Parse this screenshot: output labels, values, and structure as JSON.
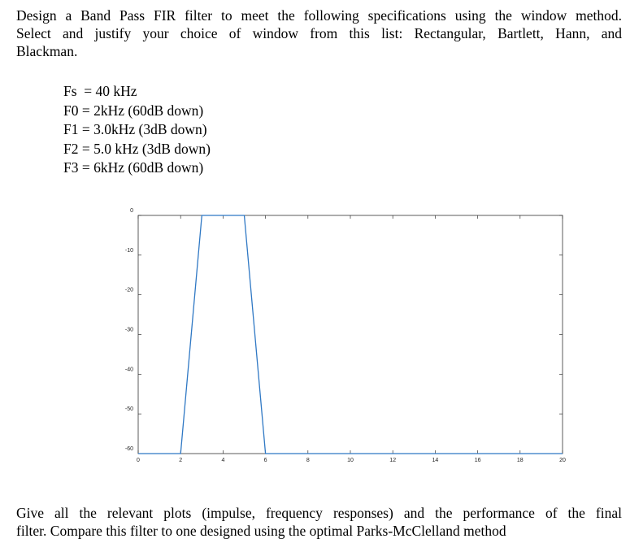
{
  "intro_lines": [
    "Design a Band Pass FIR filter to meet the following specifications using the window method.",
    "Select and justify your choice of window from this list: Rectangular, Bartlett, Hann, and",
    "Blackman."
  ],
  "specs": [
    "Fs  = 40 kHz",
    "F0 = 2kHz (60dB down)",
    "F1 = 3.0kHz (3dB down)",
    "F2 = 5.0 kHz (3dB down)",
    "F3 = 6kHz (60dB down)"
  ],
  "outro_lines": [
    "Give all the relevant plots (impulse, frequency responses) and the performance of the final",
    "filter. Compare this filter to one designed using the optimal Parks-McClelland method"
  ],
  "chart_data": {
    "type": "line",
    "title": "",
    "xlabel": "",
    "ylabel": "",
    "xlim": [
      0,
      20
    ],
    "ylim": [
      -60,
      0
    ],
    "x_ticks": [
      0,
      2,
      4,
      6,
      8,
      10,
      12,
      14,
      16,
      18,
      20
    ],
    "y_ticks": [
      0,
      -10,
      -20,
      -30,
      -40,
      -50,
      -60
    ],
    "grid": false,
    "series": [
      {
        "color": "#2f78c4",
        "x": [
          0,
          2,
          3,
          5,
          6,
          20
        ],
        "y": [
          -60,
          -60,
          0,
          0,
          -60,
          -60
        ]
      }
    ]
  }
}
